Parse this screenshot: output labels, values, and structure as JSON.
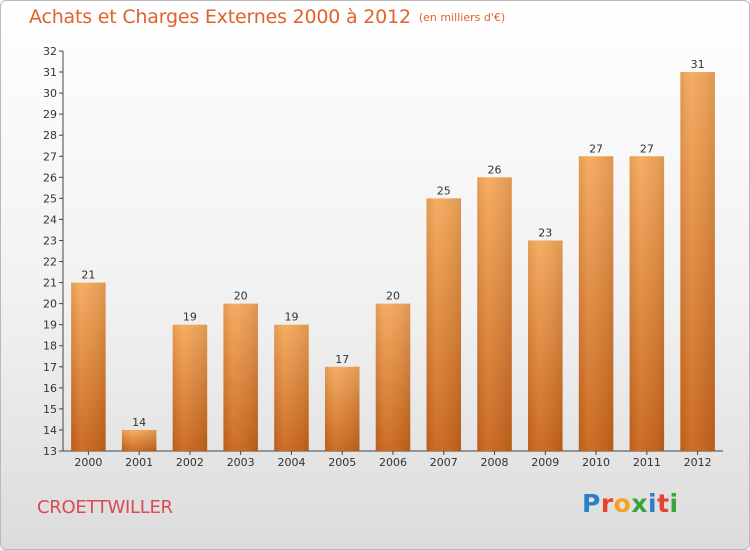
{
  "header": {
    "title": "Achats et Charges Externes 2000 à 2012",
    "unit": "(en milliers d'€)"
  },
  "footer": {
    "commune": "CROETTWILLER",
    "logo_letters": [
      "P",
      "r",
      "o",
      "x",
      "i",
      "t",
      "i"
    ]
  },
  "colors": {
    "title": "#e0622a",
    "commune": "#d94a55",
    "bar_light": "#f6a85a",
    "bar_dark": "#c9641a",
    "logo": [
      "#2c7fc4",
      "#e8412d",
      "#f2a21f",
      "#3ba33b",
      "#2c7fc4",
      "#e8412d",
      "#3ba33b"
    ]
  },
  "chart_data": {
    "type": "bar",
    "categories": [
      "2000",
      "2001",
      "2002",
      "2003",
      "2004",
      "2005",
      "2006",
      "2007",
      "2008",
      "2009",
      "2010",
      "2011",
      "2012"
    ],
    "values": [
      21,
      14,
      19,
      20,
      19,
      17,
      20,
      25,
      26,
      23,
      27,
      27,
      31
    ],
    "ylim": [
      13,
      32
    ],
    "yticks": [
      13,
      14,
      15,
      16,
      17,
      18,
      19,
      20,
      21,
      22,
      23,
      24,
      25,
      26,
      27,
      28,
      29,
      30,
      31,
      32
    ],
    "grid": false,
    "legend": "none"
  }
}
